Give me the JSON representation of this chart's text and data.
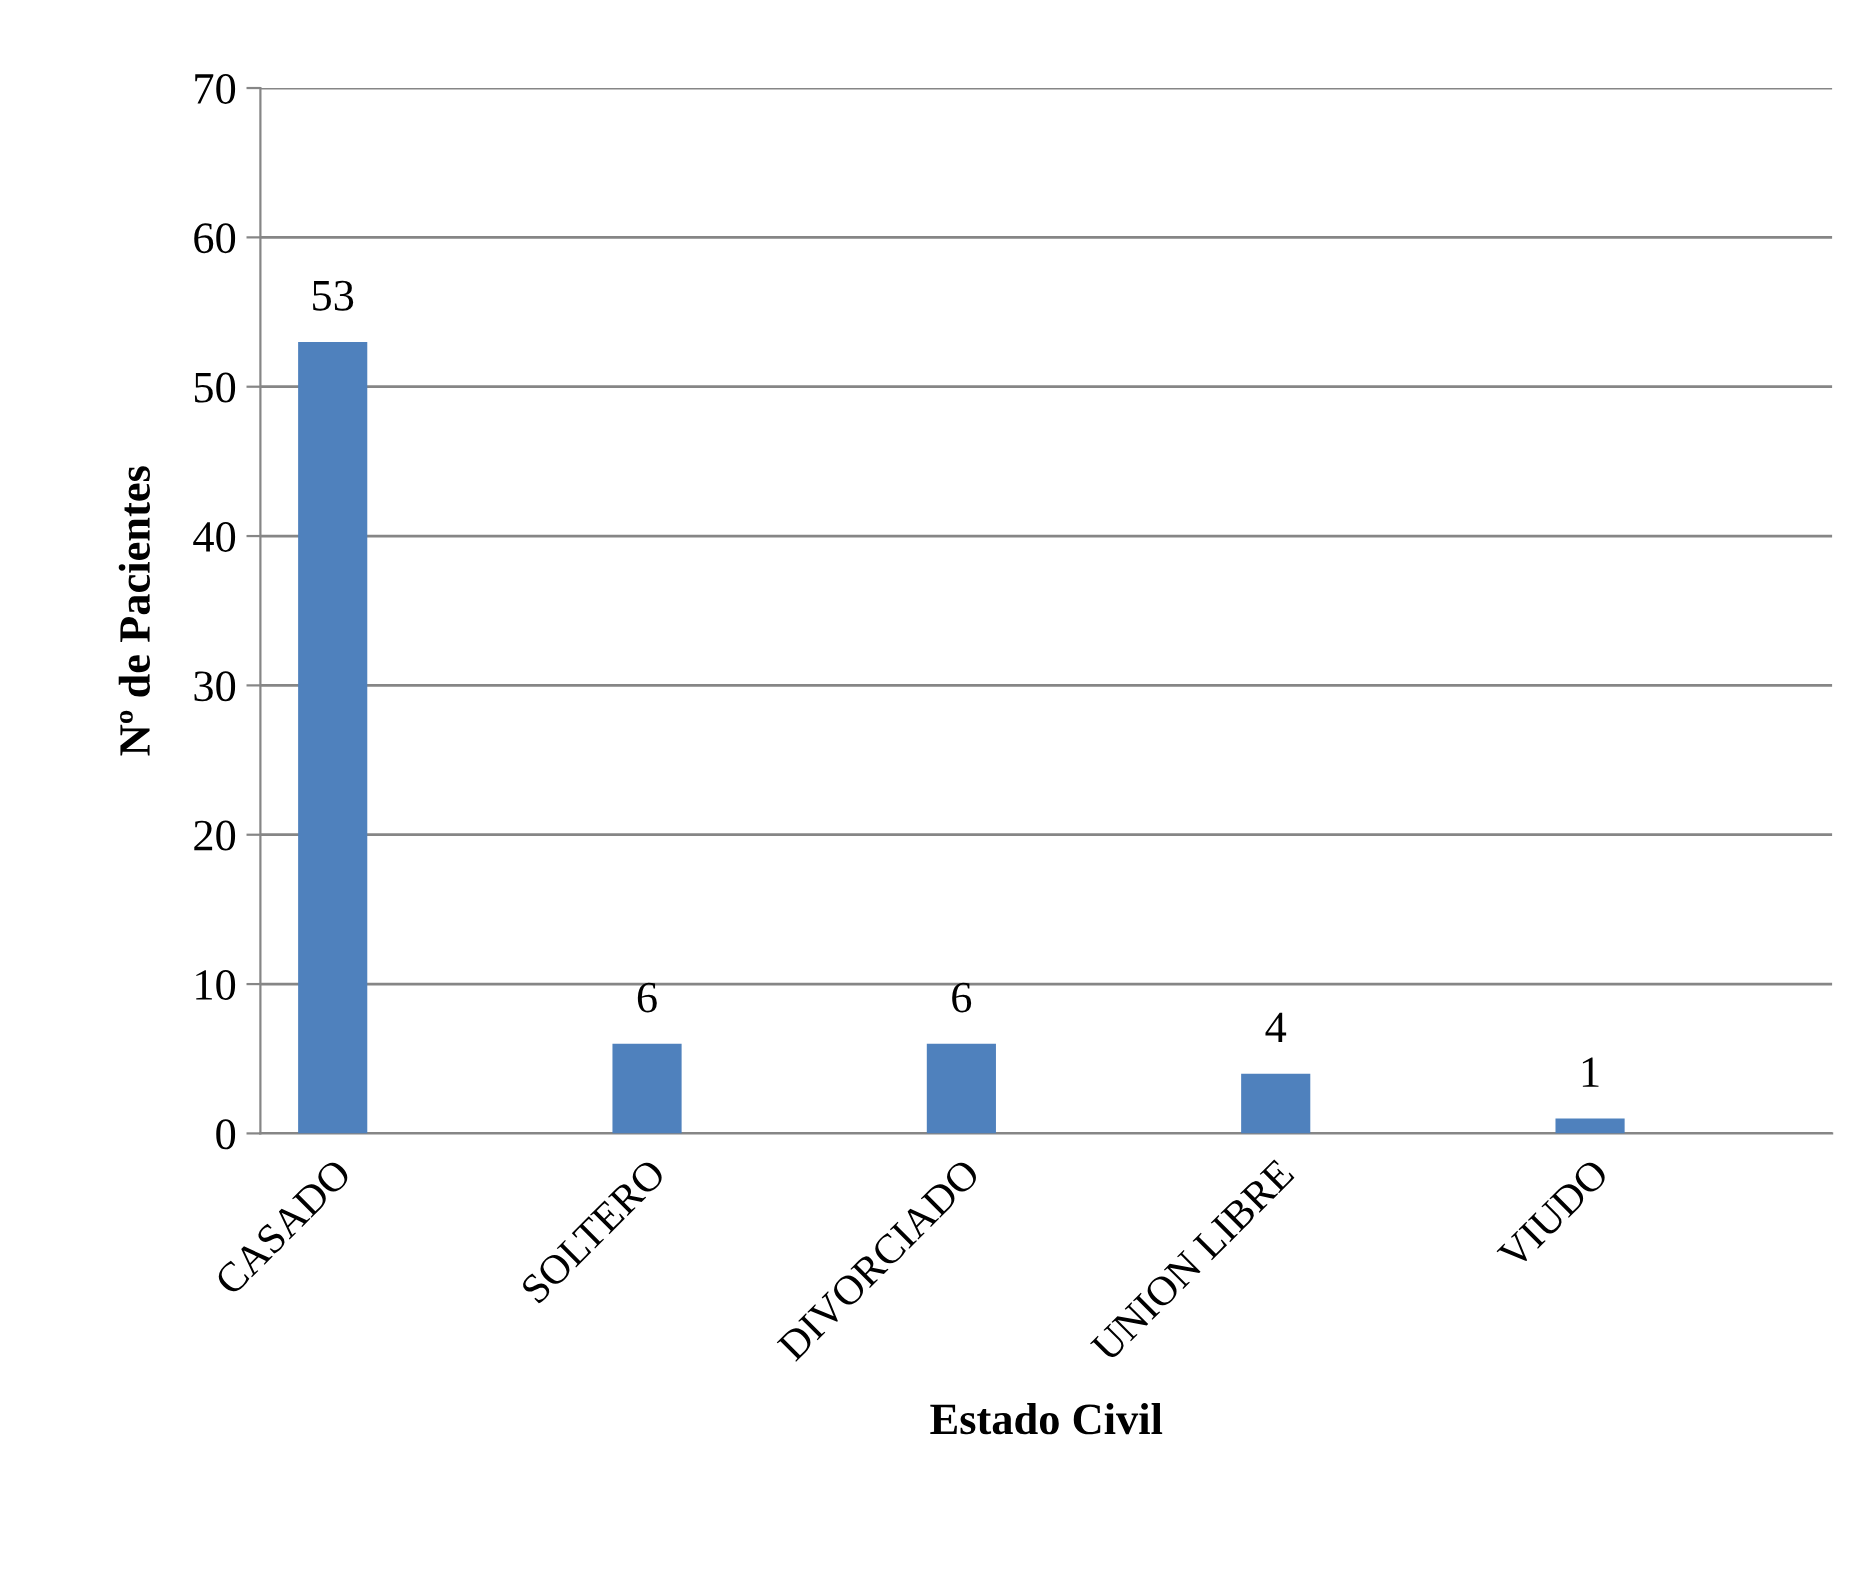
{
  "chart_data": {
    "type": "bar",
    "xlabel": "Estado Civil",
    "ylabel": "Nº de Pacientes",
    "categories": [
      "CASADO",
      "SOLTERO",
      "DIVORCIADO",
      "UNION LIBRE",
      "VIUDO"
    ],
    "values": [
      53,
      6,
      6,
      4,
      1
    ],
    "color": "#4f81bd",
    "ylim": [
      0,
      70
    ],
    "yticks": [
      0,
      10,
      20,
      30,
      40,
      50,
      60,
      70
    ],
    "grid": "y",
    "data_labels": true,
    "legend": false
  }
}
